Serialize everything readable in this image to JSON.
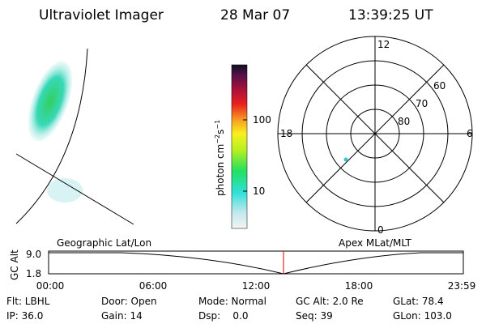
{
  "header": {
    "title": "Ultraviolet Imager",
    "date": "28 Mar 07",
    "time": "13:39:25 UT"
  },
  "colorbar": {
    "label": {
      "base": "photon cm",
      "exp1": "−2",
      "unit2": "s",
      "exp2": "−1"
    },
    "tick_labels": [
      "100",
      "10"
    ]
  },
  "polar_plot": {
    "mlt_labels": [
      "12",
      "6",
      "0",
      "18"
    ],
    "lat_labels": [
      "60",
      "70",
      "80"
    ]
  },
  "altitude_strip": {
    "axis_label": "GC Alt",
    "y_labels": [
      "9.0",
      "1.8"
    ],
    "left_caption": "Geographic Lat/Lon",
    "right_caption": "Apex MLat/MLT",
    "time_labels": [
      "00:00",
      "06:00",
      "12:00",
      "18:00",
      "23:59"
    ]
  },
  "status": {
    "rows": [
      [
        "Flt: LBHL",
        "Door: Open",
        "Mode: Normal",
        "GC Alt: 2.0 Re",
        "GLat: 78.4"
      ],
      [
        "IP: 36.0",
        "Gain: 14",
        "Dsp:    0.0",
        "Seq: 39",
        "GLon: 103.0"
      ]
    ]
  }
}
